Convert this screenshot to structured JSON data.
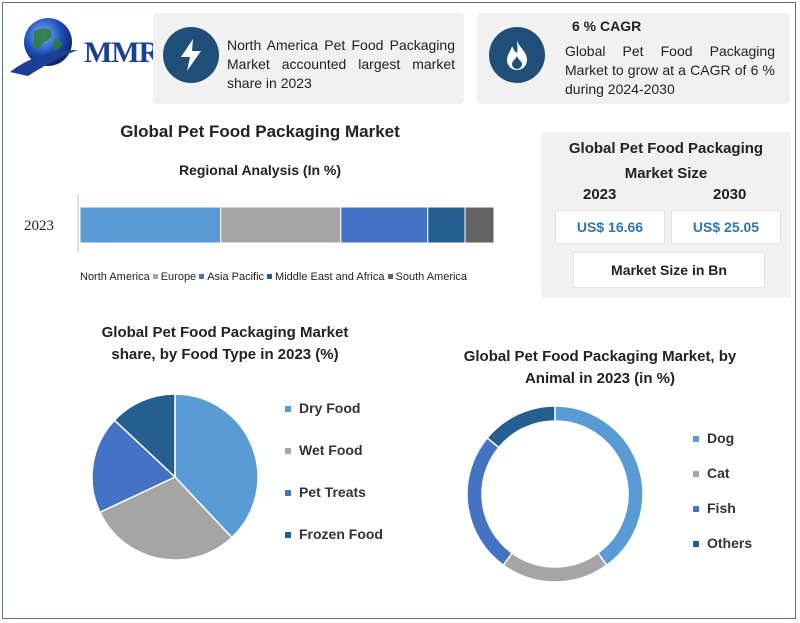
{
  "logo": {
    "text": "MMR"
  },
  "info_cards": [
    {
      "icon": "lightning-icon",
      "text": "North America Pet Food Packaging Market accounted largest market share in 2023"
    },
    {
      "icon": "flame-icon",
      "title": "6 % CAGR",
      "text": "Global Pet Food Packaging Market to grow at a CAGR of 6 % during 2024-2030"
    }
  ],
  "regional": {
    "title": "Global Pet Food Packaging Market",
    "subtitle": "Regional Analysis (In %)"
  },
  "market_size": {
    "title": "Global Pet Food Packaging Market Size",
    "year_a": "2023",
    "year_b": "2030",
    "value_a": "US$ 16.66",
    "value_b": "US$ 25.05",
    "unit_label": "Market Size in Bn"
  },
  "colors": {
    "north_america": "#5b9bd5",
    "europe": "#a5a5a5",
    "asia_pacific": "#4472c4",
    "mea": "#255e91",
    "south_america": "#636363",
    "dry_food": "#5b9bd5",
    "wet_food": "#a5a5a5",
    "pet_treats": "#4472c4",
    "frozen_food": "#255e91",
    "icon_bg": "#1f4e79"
  },
  "chart_data": [
    {
      "type": "bar",
      "orientation": "horizontal-stacked",
      "title": "Global Pet Food Packaging Market",
      "subtitle": "Regional Analysis (In %)",
      "categories": [
        "2023"
      ],
      "series": [
        {
          "name": "North America",
          "values": [
            34
          ]
        },
        {
          "name": "Europe",
          "values": [
            29
          ]
        },
        {
          "name": "Asia Pacific",
          "values": [
            21
          ]
        },
        {
          "name": "Middle East and Africa",
          "values": [
            9
          ]
        },
        {
          "name": "South America",
          "values": [
            7
          ]
        }
      ],
      "legend": "bottom"
    },
    {
      "type": "pie",
      "title": "Global Pet Food Packaging Market share, by Food Type in 2023  (%)",
      "labels": [
        "Dry Food",
        "Wet Food",
        "Pet Treats",
        "Frozen Food"
      ],
      "values": [
        38,
        30,
        19,
        13
      ],
      "legend": "right"
    },
    {
      "type": "pie",
      "variant": "donut",
      "title": "Global Pet Food Packaging Market, by Animal in 2023 (in %)",
      "labels": [
        "Dog",
        "Cat",
        "Fish",
        "Others"
      ],
      "values": [
        40,
        20,
        26,
        14
      ],
      "legend": "right"
    }
  ]
}
